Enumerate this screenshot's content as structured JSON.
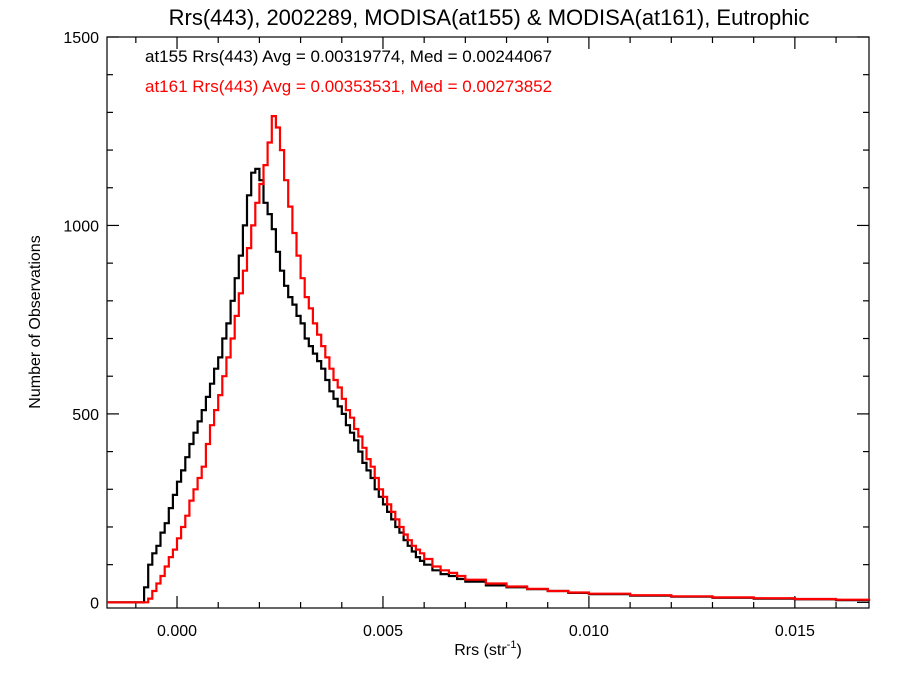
{
  "chart_data": {
    "type": "line",
    "title": "Rrs(443), 2002289, MODISA(at155) & MODISA(at161), Eutrophic",
    "xlabel": "Rrs (str",
    "xlabel_sup": "-1",
    "xlabel_suffix": ")",
    "ylabel": "Number of Observations",
    "xlim": [
      -0.0017,
      0.0168
    ],
    "ylim": [
      -15,
      1500
    ],
    "x_ticks": [
      0.0,
      0.005,
      0.01,
      0.015
    ],
    "x_tick_labels": [
      "0.000",
      "0.005",
      "0.010",
      "0.015"
    ],
    "y_ticks": [
      0,
      500,
      1000,
      1500
    ],
    "y_tick_labels": [
      "0",
      "500",
      "1000",
      "1500"
    ],
    "grid": false,
    "legend_position": "top-left",
    "series": [
      {
        "name": "at155",
        "legend": "at155 Rrs(443) Avg = 0.00319774, Med = 0.00244067",
        "color": "#000000",
        "points": [
          [
            -0.0017,
            0
          ],
          [
            -0.0009,
            0
          ],
          [
            -0.0008,
            40
          ],
          [
            -0.0007,
            100
          ],
          [
            -0.0006,
            130
          ],
          [
            -0.0005,
            150
          ],
          [
            -0.0004,
            185
          ],
          [
            -0.0003,
            210
          ],
          [
            -0.0002,
            250
          ],
          [
            -0.0001,
            285
          ],
          [
            0.0,
            320
          ],
          [
            0.0001,
            350
          ],
          [
            0.0002,
            385
          ],
          [
            0.0003,
            420
          ],
          [
            0.0004,
            450
          ],
          [
            0.0005,
            480
          ],
          [
            0.0006,
            510
          ],
          [
            0.0007,
            545
          ],
          [
            0.0008,
            580
          ],
          [
            0.0009,
            620
          ],
          [
            0.001,
            650
          ],
          [
            0.0011,
            700
          ],
          [
            0.0012,
            740
          ],
          [
            0.0013,
            800
          ],
          [
            0.0014,
            860
          ],
          [
            0.0015,
            920
          ],
          [
            0.0016,
            1000
          ],
          [
            0.0017,
            1080
          ],
          [
            0.0018,
            1140
          ],
          [
            0.0019,
            1150
          ],
          [
            0.002,
            1120
          ],
          [
            0.0021,
            1060
          ],
          [
            0.0022,
            1030
          ],
          [
            0.0023,
            990
          ],
          [
            0.0024,
            930
          ],
          [
            0.0025,
            880
          ],
          [
            0.0026,
            840
          ],
          [
            0.0027,
            810
          ],
          [
            0.0028,
            790
          ],
          [
            0.0029,
            760
          ],
          [
            0.003,
            740
          ],
          [
            0.0031,
            700
          ],
          [
            0.0032,
            680
          ],
          [
            0.0033,
            660
          ],
          [
            0.0034,
            640
          ],
          [
            0.0035,
            620
          ],
          [
            0.0036,
            590
          ],
          [
            0.0037,
            560
          ],
          [
            0.0038,
            540
          ],
          [
            0.0039,
            520
          ],
          [
            0.004,
            500
          ],
          [
            0.0041,
            470
          ],
          [
            0.0042,
            450
          ],
          [
            0.0043,
            430
          ],
          [
            0.0044,
            400
          ],
          [
            0.0045,
            370
          ],
          [
            0.0046,
            350
          ],
          [
            0.0047,
            330
          ],
          [
            0.0048,
            300
          ],
          [
            0.0049,
            280
          ],
          [
            0.005,
            260
          ],
          [
            0.0051,
            240
          ],
          [
            0.0052,
            220
          ],
          [
            0.0053,
            200
          ],
          [
            0.0054,
            185
          ],
          [
            0.0055,
            165
          ],
          [
            0.0056,
            150
          ],
          [
            0.0057,
            135
          ],
          [
            0.0058,
            120
          ],
          [
            0.0059,
            110
          ],
          [
            0.006,
            100
          ],
          [
            0.0062,
            85
          ],
          [
            0.0064,
            75
          ],
          [
            0.0066,
            70
          ],
          [
            0.0068,
            62
          ],
          [
            0.007,
            55
          ],
          [
            0.0075,
            45
          ],
          [
            0.008,
            40
          ],
          [
            0.0085,
            35
          ],
          [
            0.009,
            30
          ],
          [
            0.0095,
            25
          ],
          [
            0.01,
            22
          ],
          [
            0.011,
            18
          ],
          [
            0.012,
            15
          ],
          [
            0.013,
            12
          ],
          [
            0.014,
            10
          ],
          [
            0.015,
            8
          ],
          [
            0.016,
            6
          ],
          [
            0.0168,
            4
          ]
        ]
      },
      {
        "name": "at161",
        "legend": "at161 Rrs(443) Avg = 0.00353531, Med = 0.00273852",
        "color": "#ff0000",
        "points": [
          [
            -0.0017,
            0
          ],
          [
            -0.0008,
            0
          ],
          [
            -0.0007,
            10
          ],
          [
            -0.0006,
            30
          ],
          [
            -0.0005,
            50
          ],
          [
            -0.0004,
            70
          ],
          [
            -0.0003,
            95
          ],
          [
            -0.0002,
            120
          ],
          [
            -0.0001,
            140
          ],
          [
            0.0,
            170
          ],
          [
            0.0001,
            200
          ],
          [
            0.0002,
            230
          ],
          [
            0.0003,
            270
          ],
          [
            0.0004,
            300
          ],
          [
            0.0005,
            330
          ],
          [
            0.0006,
            360
          ],
          [
            0.0007,
            420
          ],
          [
            0.0008,
            470
          ],
          [
            0.0009,
            510
          ],
          [
            0.001,
            550
          ],
          [
            0.0011,
            600
          ],
          [
            0.0012,
            650
          ],
          [
            0.0013,
            700
          ],
          [
            0.0014,
            760
          ],
          [
            0.0015,
            820
          ],
          [
            0.0016,
            880
          ],
          [
            0.0017,
            940
          ],
          [
            0.0018,
            1000
          ],
          [
            0.0019,
            1060
          ],
          [
            0.002,
            1110
          ],
          [
            0.0021,
            1160
          ],
          [
            0.0022,
            1220
          ],
          [
            0.0023,
            1290
          ],
          [
            0.0024,
            1260
          ],
          [
            0.0025,
            1200
          ],
          [
            0.0026,
            1120
          ],
          [
            0.0027,
            1050
          ],
          [
            0.0028,
            980
          ],
          [
            0.0029,
            920
          ],
          [
            0.003,
            860
          ],
          [
            0.0031,
            810
          ],
          [
            0.0032,
            780
          ],
          [
            0.0033,
            740
          ],
          [
            0.0034,
            710
          ],
          [
            0.0035,
            680
          ],
          [
            0.0036,
            650
          ],
          [
            0.0037,
            620
          ],
          [
            0.0038,
            590
          ],
          [
            0.0039,
            570
          ],
          [
            0.004,
            540
          ],
          [
            0.0041,
            510
          ],
          [
            0.0042,
            490
          ],
          [
            0.0043,
            460
          ],
          [
            0.0044,
            440
          ],
          [
            0.0045,
            410
          ],
          [
            0.0046,
            380
          ],
          [
            0.0047,
            360
          ],
          [
            0.0048,
            330
          ],
          [
            0.0049,
            300
          ],
          [
            0.005,
            280
          ],
          [
            0.0051,
            260
          ],
          [
            0.0052,
            240
          ],
          [
            0.0053,
            220
          ],
          [
            0.0054,
            200
          ],
          [
            0.0055,
            180
          ],
          [
            0.0056,
            165
          ],
          [
            0.0057,
            150
          ],
          [
            0.0058,
            140
          ],
          [
            0.0059,
            130
          ],
          [
            0.006,
            115
          ],
          [
            0.0062,
            95
          ],
          [
            0.0064,
            85
          ],
          [
            0.0066,
            78
          ],
          [
            0.0068,
            70
          ],
          [
            0.007,
            60
          ],
          [
            0.0075,
            50
          ],
          [
            0.008,
            42
          ],
          [
            0.0085,
            36
          ],
          [
            0.009,
            30
          ],
          [
            0.0095,
            26
          ],
          [
            0.01,
            23
          ],
          [
            0.011,
            19
          ],
          [
            0.012,
            16
          ],
          [
            0.013,
            13
          ],
          [
            0.014,
            11
          ],
          [
            0.015,
            9
          ],
          [
            0.016,
            7
          ],
          [
            0.0168,
            5
          ]
        ]
      }
    ]
  }
}
